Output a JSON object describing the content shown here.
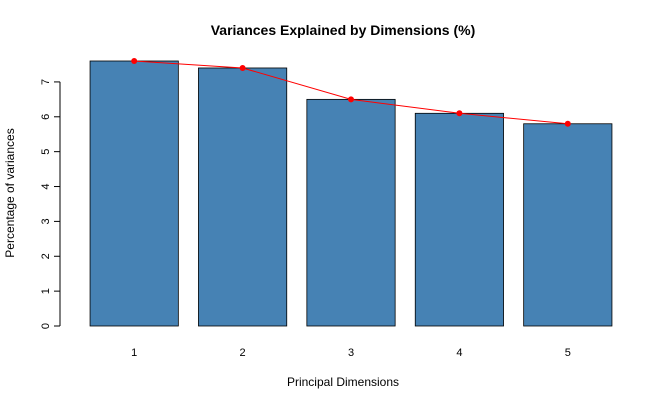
{
  "chart_data": {
    "type": "bar",
    "title": "Variances Explained by Dimensions (%)",
    "xlabel": "Principal Dimensions",
    "ylabel": "Percentage of variances",
    "categories": [
      "1",
      "2",
      "3",
      "4",
      "5"
    ],
    "values": [
      7.6,
      7.4,
      6.5,
      6.1,
      5.8
    ],
    "ylim": [
      0,
      7.6
    ],
    "yticks": [
      0,
      1,
      2,
      3,
      4,
      5,
      6,
      7
    ],
    "bar_color": "#4682B4",
    "line_color": "#FF0000",
    "overlay": "line-with-points",
    "grid": false,
    "legend": "none"
  }
}
